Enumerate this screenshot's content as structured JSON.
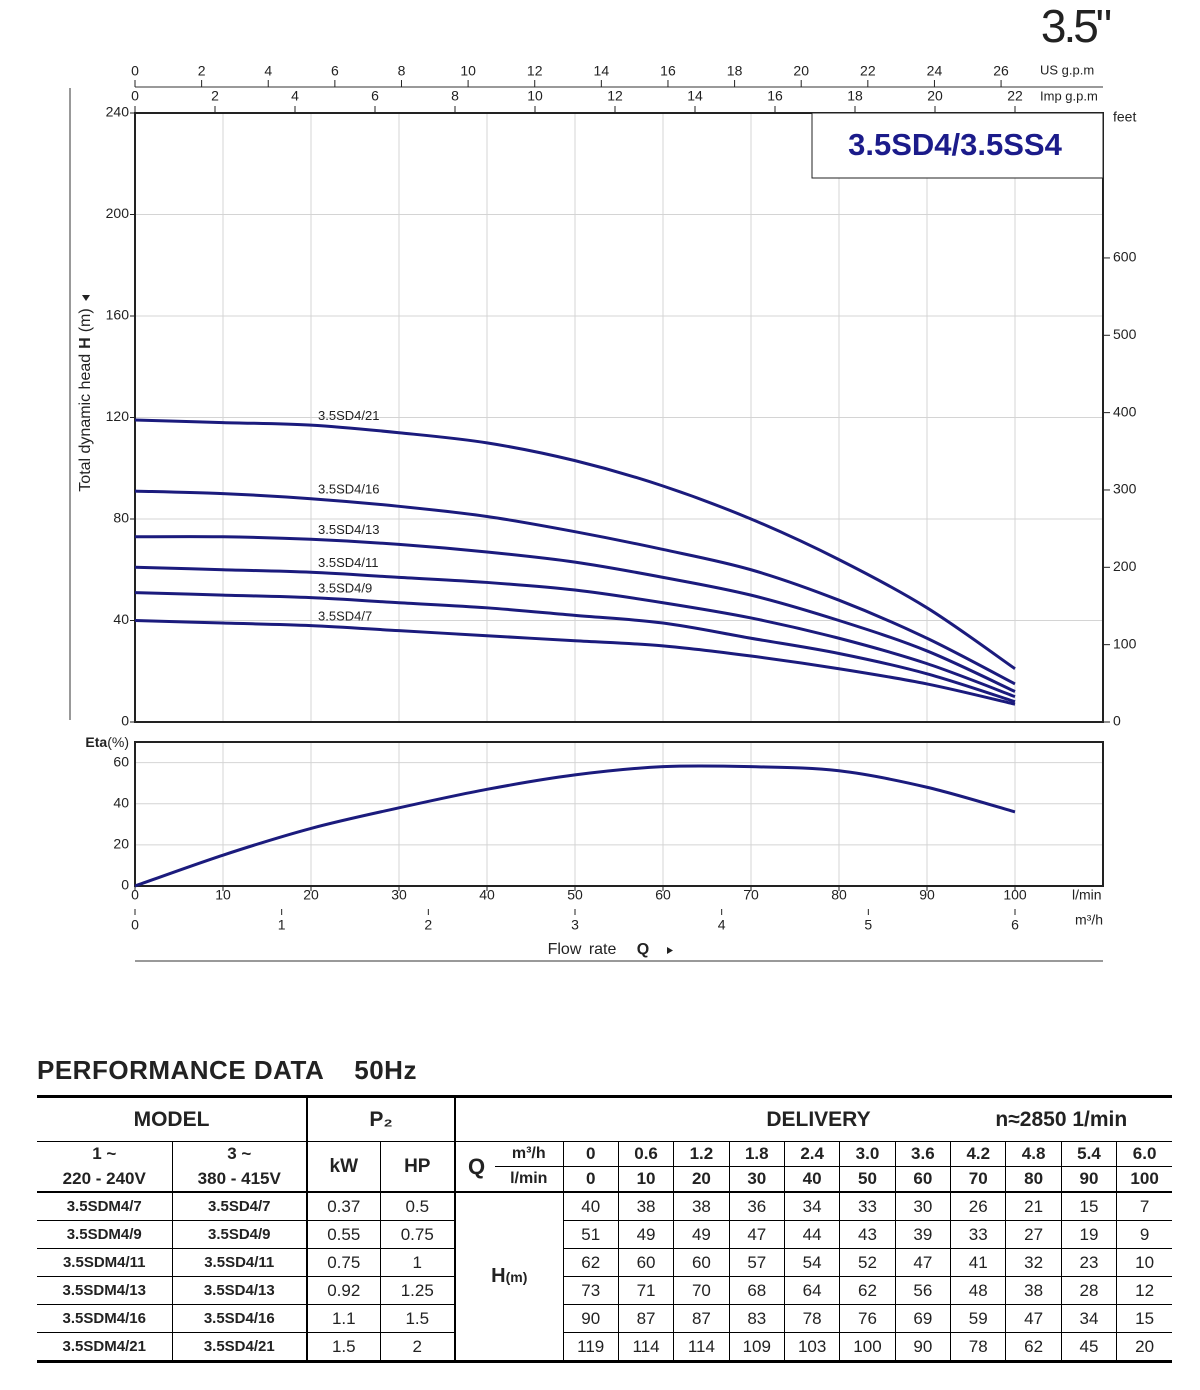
{
  "badge": "3.5\"",
  "chart_data": [
    {
      "type": "line",
      "title": "3.5SD4/3.5SS4",
      "y_label": "Total dynamic head",
      "y_label_symbol": "H",
      "y_label_unit": "(m)",
      "x": [
        0,
        10,
        20,
        30,
        40,
        50,
        60,
        70,
        80,
        90,
        100
      ],
      "xlim": [
        0,
        110
      ],
      "ylim": [
        0,
        240
      ],
      "yticks": [
        0,
        40,
        80,
        120,
        160,
        200,
        240
      ],
      "y2lim": [
        0,
        787.4
      ],
      "y2ticks": [
        0,
        100,
        200,
        300,
        400,
        500,
        600
      ],
      "y2_label": "feet",
      "x2lim": [
        0,
        29.06
      ],
      "x2ticks": [
        0,
        2,
        4,
        6,
        8,
        10,
        12,
        14,
        16,
        18,
        20,
        22,
        24,
        26
      ],
      "x2_label": "US g.p.m",
      "x3lim": [
        0,
        24.2
      ],
      "x3ticks": [
        0,
        2,
        4,
        6,
        8,
        10,
        12,
        14,
        16,
        18,
        20,
        22
      ],
      "x3_label": "Imp g.p.m",
      "grid": true,
      "series": [
        {
          "name": "3.5SD4/21",
          "color": "#1b1b7d",
          "values": [
            119,
            118,
            117,
            114,
            110,
            103,
            93,
            80,
            64,
            45,
            21
          ]
        },
        {
          "name": "3.5SD4/16",
          "color": "#1b1b7d",
          "values": [
            91,
            90,
            88,
            85,
            81,
            75,
            68,
            60,
            48,
            33,
            15
          ]
        },
        {
          "name": "3.5SD4/13",
          "color": "#1b1b7d",
          "values": [
            73,
            73,
            72,
            70,
            67,
            63,
            57,
            50,
            40,
            28,
            12
          ]
        },
        {
          "name": "3.5SD4/11",
          "color": "#1b1b7d",
          "values": [
            61,
            60,
            59,
            57,
            55,
            52,
            47,
            41,
            33,
            23,
            10
          ]
        },
        {
          "name": "3.5SD4/9",
          "color": "#1b1b7d",
          "values": [
            51,
            50,
            49,
            47,
            45,
            42,
            39,
            33,
            27,
            19,
            8
          ]
        },
        {
          "name": "3.5SD4/7",
          "color": "#1b1b7d",
          "values": [
            40,
            39,
            38,
            36,
            34,
            32,
            30,
            26,
            21,
            15,
            7
          ]
        }
      ]
    },
    {
      "type": "line",
      "y_label": "Eta",
      "y_label_unit": "(%)",
      "x": [
        0,
        10,
        20,
        30,
        40,
        50,
        60,
        70,
        80,
        90,
        100
      ],
      "xlim": [
        0,
        110
      ],
      "xticks": [
        0,
        10,
        20,
        30,
        40,
        50,
        60,
        70,
        80,
        90,
        100
      ],
      "x_unit": "l/min",
      "x2lim": [
        0,
        6.6
      ],
      "x2ticks": [
        0,
        1,
        2,
        3,
        4,
        5,
        6
      ],
      "x2_unit": "m³/h",
      "x_label": "Flow rate",
      "x_label_symbol": "Q",
      "ylim": [
        0,
        70
      ],
      "yticks": [
        0,
        20,
        40,
        60
      ],
      "grid": true,
      "color": "#1b1b7d",
      "values": [
        0,
        15,
        28,
        38,
        47,
        54,
        58,
        58,
        56,
        48,
        36
      ]
    }
  ],
  "table": {
    "title": "PERFORMANCE DATA",
    "frequency": "50Hz",
    "header": {
      "model": "MODEL",
      "power": "P₂",
      "delivery": "DELIVERY",
      "speed": "n≈2850 1/min",
      "phase_1": "1 ~",
      "voltage_1": "220 - 240V",
      "phase_3": "3 ~",
      "voltage_3": "380 - 415V",
      "kw": "kW",
      "hp": "HP",
      "q": "Q",
      "q_unit_m3h": "m³/h",
      "q_unit_lmin": "l/min",
      "h": "H",
      "h_unit": "(m)"
    },
    "q_m3h": [
      "0",
      "0.6",
      "1.2",
      "1.8",
      "2.4",
      "3.0",
      "3.6",
      "4.2",
      "4.8",
      "5.4",
      "6.0"
    ],
    "q_lmin": [
      0,
      10,
      20,
      30,
      40,
      50,
      60,
      70,
      80,
      90,
      100
    ],
    "rows": [
      {
        "model_1": "3.5SDM4/7",
        "model_3": "3.5SD4/7",
        "kw": "0.37",
        "hp": "0.5",
        "h": [
          40,
          38,
          38,
          36,
          34,
          33,
          30,
          26,
          21,
          15,
          7
        ]
      },
      {
        "model_1": "3.5SDM4/9",
        "model_3": "3.5SD4/9",
        "kw": "0.55",
        "hp": "0.75",
        "h": [
          51,
          49,
          49,
          47,
          44,
          43,
          39,
          33,
          27,
          19,
          9
        ]
      },
      {
        "model_1": "3.5SDM4/11",
        "model_3": "3.5SD4/11",
        "kw": "0.75",
        "hp": "1",
        "h": [
          62,
          60,
          60,
          57,
          54,
          52,
          47,
          41,
          32,
          23,
          10
        ]
      },
      {
        "model_1": "3.5SDM4/13",
        "model_3": "3.5SD4/13",
        "kw": "0.92",
        "hp": "1.25",
        "h": [
          73,
          71,
          70,
          68,
          64,
          62,
          56,
          48,
          38,
          28,
          12
        ]
      },
      {
        "model_1": "3.5SDM4/16",
        "model_3": "3.5SD4/16",
        "kw": "1.1",
        "hp": "1.5",
        "h": [
          90,
          87,
          87,
          83,
          78,
          76,
          69,
          59,
          47,
          34,
          15
        ]
      },
      {
        "model_1": "3.5SDM4/21",
        "model_3": "3.5SD4/21",
        "kw": "1.5",
        "hp": "2",
        "h": [
          119,
          114,
          114,
          109,
          103,
          100,
          90,
          78,
          62,
          45,
          20
        ]
      }
    ]
  }
}
